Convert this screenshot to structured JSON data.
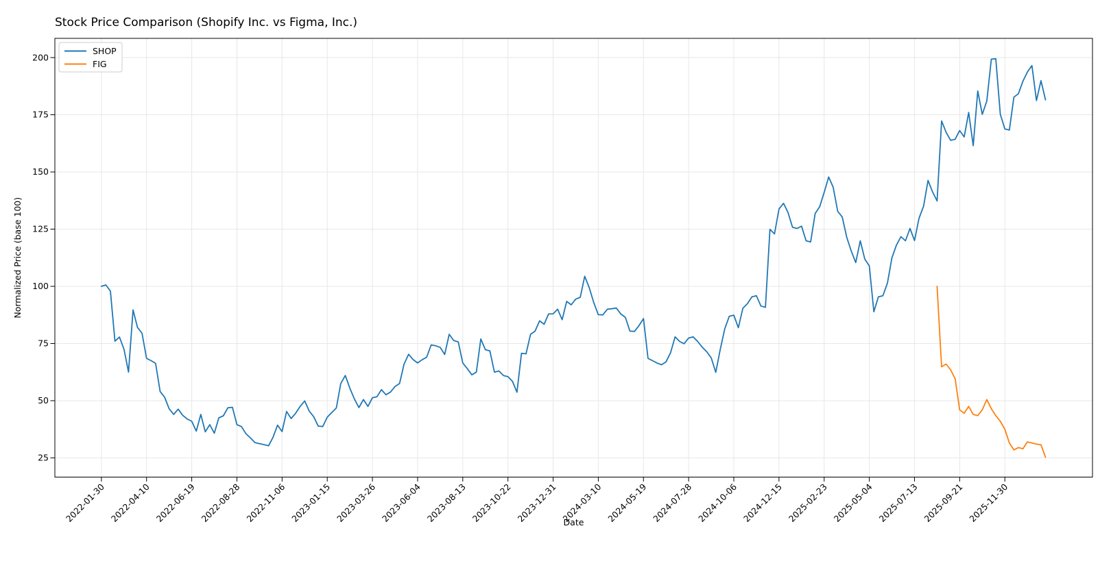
{
  "figure": {
    "title": "Stock Price Comparison (Shopify Inc. vs Figma, Inc.)",
    "xlabel": "Date",
    "ylabel": "Normalized Price (base 100)"
  },
  "legend": {
    "position": "upper-left",
    "entries": [
      {
        "label": "SHOP",
        "color": "#1f77b4"
      },
      {
        "label": "FIG",
        "color": "#ff7f0e"
      }
    ]
  },
  "chart_data": {
    "type": "line",
    "title": "Stock Price Comparison (Shopify Inc. vs Figma, Inc.)",
    "xlabel": "Date",
    "ylabel": "Normalized Price (base 100)",
    "grid": true,
    "legend_position": "upper left",
    "x_frequency": "weekly",
    "start_date": "2022-01-30",
    "x_tick_labels": [
      "2022-01-30",
      "2022-04-10",
      "2022-06-19",
      "2022-08-28",
      "2022-11-06",
      "2023-01-15",
      "2023-03-26",
      "2023-06-04",
      "2023-08-13",
      "2023-10-22",
      "2023-12-31",
      "2024-03-10",
      "2024-05-19",
      "2024-07-28",
      "2024-10-06",
      "2024-12-15",
      "2025-02-23",
      "2025-05-04",
      "2025-07-13",
      "2025-09-21",
      "2025-11-30"
    ],
    "x_tick_indices": [
      0,
      10,
      20,
      30,
      40,
      50,
      60,
      70,
      80,
      90,
      100,
      110,
      120,
      130,
      140,
      150,
      160,
      170,
      180,
      190,
      200
    ],
    "y_ticks": [
      25,
      50,
      75,
      100,
      125,
      150,
      175,
      200
    ],
    "ylim": [
      16.6,
      208.4
    ],
    "xlim_index": [
      -10.3,
      219.4
    ],
    "series": [
      {
        "name": "SHOP",
        "color": "#1f77b4",
        "start_index": 0,
        "values": [
          100,
          100.6,
          97.9,
          76,
          77.8,
          72.5,
          62.5,
          89.7,
          82,
          79.5,
          68.5,
          67.5,
          66.3,
          54,
          51.5,
          46.5,
          44,
          46.3,
          43.6,
          42,
          41,
          36.7,
          44,
          36.4,
          39.5,
          35.8,
          42.5,
          43.4,
          46.9,
          47.1,
          39.5,
          38.7,
          35.6,
          33.7,
          31.7,
          31.2,
          30.8,
          30.3,
          34,
          39.3,
          36.5,
          45.3,
          42.2,
          44.5,
          47.5,
          49.9,
          45.5,
          43,
          38.9,
          38.7,
          42.8,
          44.8,
          46.8,
          57.5,
          61,
          55.5,
          50.8,
          47,
          50.5,
          47.5,
          51.3,
          51.7,
          54.8,
          52.6,
          53.8,
          56.2,
          57.5,
          66,
          70.3,
          68,
          66.5,
          67.9,
          69,
          74.4,
          74,
          73.3,
          70.2,
          79,
          76.3,
          75.7,
          66.5,
          64,
          61.3,
          62.5,
          77,
          72.3,
          71.8,
          62.5,
          63,
          61,
          60.5,
          58.5,
          53.7,
          70.7,
          70.5,
          79,
          80.4,
          84.9,
          83.4,
          87.9,
          88,
          90,
          85.4,
          93.4,
          91.9,
          94.4,
          95.2,
          104.4,
          99.4,
          92.9,
          87.6,
          87.5,
          90,
          90.2,
          90.5,
          87.9,
          86.4,
          80.4,
          80.3,
          82.8,
          85.9,
          68.5,
          67.5,
          66.5,
          65.7,
          67,
          71,
          77.9,
          75.9,
          74.9,
          77.4,
          77.9,
          75.9,
          73.4,
          71.4,
          68.7,
          62.4,
          72.4,
          81.4,
          86.9,
          87.4,
          81.9,
          90.4,
          92.4,
          95.4,
          95.9,
          91.4,
          90.8,
          124.9,
          122.9,
          133.8,
          136.3,
          132.3,
          125.8,
          125.3,
          126.3,
          119.9,
          119.4,
          131.8,
          134.8,
          141,
          147.8,
          143.3,
          132.8,
          130.3,
          121.4,
          115.4,
          110.4,
          119.9,
          111.9,
          108.9,
          88.9,
          95.4,
          95.9,
          101.4,
          112.4,
          118,
          121.7,
          119.9,
          125.3,
          120,
          129.8,
          135,
          146.3,
          141.3,
          137.3,
          172.3,
          167.3,
          163.8,
          164.3,
          168.1,
          165.3,
          176,
          161.5,
          185.4,
          175.2,
          181,
          199.3,
          199.5,
          175.2,
          168.8,
          168.3,
          182.7,
          184.2,
          189.7,
          193.7,
          196.5,
          181.2,
          189.9,
          181.5
        ]
      },
      {
        "name": "FIG",
        "color": "#ff7f0e",
        "start_index": 185,
        "values": [
          100,
          64.8,
          66,
          63.5,
          59.5,
          46,
          44.5,
          47.5,
          44,
          43.5,
          46,
          50.5,
          46.5,
          43.5,
          41,
          37.5,
          31.5,
          28.5,
          29.5,
          29,
          32,
          31.5,
          31,
          30.7,
          25.3
        ]
      }
    ]
  }
}
